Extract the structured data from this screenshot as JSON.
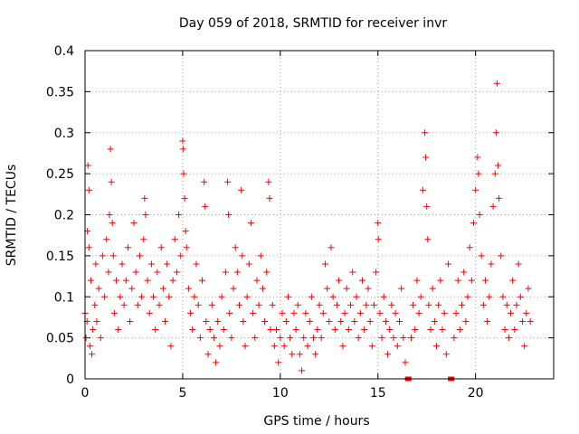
{
  "chart_data": {
    "type": "scatter",
    "title": "Day 059 of 2018, SRMTID for receiver invr",
    "xlabel": "GPS time / hours",
    "ylabel": "SRMTID / TECUs",
    "xlim": [
      0,
      24
    ],
    "ylim": [
      0,
      0.4
    ],
    "x_ticks": [
      "0",
      "5",
      "10",
      "15",
      "20"
    ],
    "x_tick_values": [
      0,
      5,
      10,
      15,
      20
    ],
    "y_ticks": [
      "0",
      "0.05",
      "0.1",
      "0.15",
      "0.2",
      "0.25",
      "0.3",
      "0.35",
      "0.4"
    ],
    "y_tick_values": [
      0,
      0.05,
      0.1,
      0.15,
      0.2,
      0.25,
      0.3,
      0.35,
      0.4
    ],
    "grid": true,
    "marker": "plus",
    "color": "#ff0000",
    "series": [
      {
        "points": [
          [
            0.0,
            0.08
          ],
          [
            0.05,
            0.05
          ],
          [
            0.1,
            0.07
          ],
          [
            0.12,
            0.18
          ],
          [
            0.15,
            0.26
          ],
          [
            0.2,
            0.23
          ],
          [
            0.2,
            0.16
          ],
          [
            0.25,
            0.04
          ],
          [
            0.3,
            0.12
          ],
          [
            0.35,
            0.03
          ],
          [
            0.4,
            0.06
          ],
          [
            0.5,
            0.09
          ],
          [
            0.55,
            0.14
          ],
          [
            0.6,
            0.07
          ],
          [
            0.7,
            0.11
          ],
          [
            0.8,
            0.05
          ],
          [
            0.9,
            0.15
          ],
          [
            1.0,
            0.1
          ],
          [
            1.1,
            0.17
          ],
          [
            1.2,
            0.13
          ],
          [
            1.25,
            0.2
          ],
          [
            1.3,
            0.28
          ],
          [
            1.35,
            0.24
          ],
          [
            1.4,
            0.19
          ],
          [
            1.45,
            0.15
          ],
          [
            1.5,
            0.08
          ],
          [
            1.6,
            0.12
          ],
          [
            1.7,
            0.06
          ],
          [
            1.8,
            0.1
          ],
          [
            1.9,
            0.14
          ],
          [
            2.0,
            0.09
          ],
          [
            2.1,
            0.12
          ],
          [
            2.2,
            0.16
          ],
          [
            2.3,
            0.07
          ],
          [
            2.4,
            0.11
          ],
          [
            2.5,
            0.19
          ],
          [
            2.6,
            0.13
          ],
          [
            2.7,
            0.09
          ],
          [
            2.8,
            0.15
          ],
          [
            2.9,
            0.1
          ],
          [
            3.0,
            0.17
          ],
          [
            3.05,
            0.22
          ],
          [
            3.1,
            0.2
          ],
          [
            3.2,
            0.12
          ],
          [
            3.3,
            0.08
          ],
          [
            3.4,
            0.14
          ],
          [
            3.5,
            0.1
          ],
          [
            3.6,
            0.06
          ],
          [
            3.7,
            0.13
          ],
          [
            3.8,
            0.09
          ],
          [
            3.9,
            0.16
          ],
          [
            4.0,
            0.11
          ],
          [
            4.1,
            0.07
          ],
          [
            4.2,
            0.14
          ],
          [
            4.3,
            0.1
          ],
          [
            4.4,
            0.04
          ],
          [
            4.5,
            0.12
          ],
          [
            4.6,
            0.17
          ],
          [
            4.7,
            0.13
          ],
          [
            4.8,
            0.2
          ],
          [
            4.9,
            0.15
          ],
          [
            5.0,
            0.29
          ],
          [
            5.02,
            0.28
          ],
          [
            5.05,
            0.25
          ],
          [
            5.1,
            0.22
          ],
          [
            5.15,
            0.18
          ],
          [
            5.2,
            0.16
          ],
          [
            5.3,
            0.11
          ],
          [
            5.4,
            0.08
          ],
          [
            5.5,
            0.06
          ],
          [
            5.6,
            0.1
          ],
          [
            5.7,
            0.14
          ],
          [
            5.8,
            0.09
          ],
          [
            5.9,
            0.05
          ],
          [
            6.0,
            0.12
          ],
          [
            6.1,
            0.24
          ],
          [
            6.15,
            0.21
          ],
          [
            6.2,
            0.07
          ],
          [
            6.3,
            0.03
          ],
          [
            6.4,
            0.06
          ],
          [
            6.5,
            0.09
          ],
          [
            6.6,
            0.05
          ],
          [
            6.7,
            0.02
          ],
          [
            6.8,
            0.07
          ],
          [
            6.9,
            0.04
          ],
          [
            7.0,
            0.1
          ],
          [
            7.1,
            0.06
          ],
          [
            7.2,
            0.13
          ],
          [
            7.3,
            0.24
          ],
          [
            7.35,
            0.2
          ],
          [
            7.4,
            0.08
          ],
          [
            7.5,
            0.05
          ],
          [
            7.6,
            0.11
          ],
          [
            7.7,
            0.16
          ],
          [
            7.8,
            0.13
          ],
          [
            7.9,
            0.09
          ],
          [
            8.0,
            0.23
          ],
          [
            8.05,
            0.15
          ],
          [
            8.1,
            0.07
          ],
          [
            8.2,
            0.04
          ],
          [
            8.3,
            0.1
          ],
          [
            8.4,
            0.14
          ],
          [
            8.5,
            0.19
          ],
          [
            8.6,
            0.08
          ],
          [
            8.7,
            0.05
          ],
          [
            8.8,
            0.12
          ],
          [
            8.9,
            0.09
          ],
          [
            9.0,
            0.15
          ],
          [
            9.1,
            0.11
          ],
          [
            9.2,
            0.07
          ],
          [
            9.3,
            0.13
          ],
          [
            9.4,
            0.24
          ],
          [
            9.45,
            0.22
          ],
          [
            9.5,
            0.06
          ],
          [
            9.6,
            0.09
          ],
          [
            9.7,
            0.04
          ],
          [
            9.8,
            0.06
          ],
          [
            9.9,
            0.02
          ],
          [
            10.0,
            0.05
          ],
          [
            10.1,
            0.08
          ],
          [
            10.2,
            0.04
          ],
          [
            10.3,
            0.07
          ],
          [
            10.4,
            0.1
          ],
          [
            10.5,
            0.05
          ],
          [
            10.6,
            0.03
          ],
          [
            10.7,
            0.08
          ],
          [
            10.8,
            0.06
          ],
          [
            10.9,
            0.09
          ],
          [
            11.0,
            0.03
          ],
          [
            11.1,
            0.01
          ],
          [
            11.2,
            0.05
          ],
          [
            11.3,
            0.08
          ],
          [
            11.4,
            0.04
          ],
          [
            11.5,
            0.07
          ],
          [
            11.6,
            0.1
          ],
          [
            11.7,
            0.05
          ],
          [
            11.8,
            0.03
          ],
          [
            11.9,
            0.06
          ],
          [
            12.0,
            0.09
          ],
          [
            12.1,
            0.05
          ],
          [
            12.2,
            0.08
          ],
          [
            12.3,
            0.14
          ],
          [
            12.4,
            0.11
          ],
          [
            12.5,
            0.07
          ],
          [
            12.6,
            0.16
          ],
          [
            12.7,
            0.1
          ],
          [
            12.8,
            0.06
          ],
          [
            12.9,
            0.09
          ],
          [
            13.0,
            0.12
          ],
          [
            13.1,
            0.07
          ],
          [
            13.2,
            0.04
          ],
          [
            13.3,
            0.08
          ],
          [
            13.4,
            0.11
          ],
          [
            13.5,
            0.06
          ],
          [
            13.6,
            0.09
          ],
          [
            13.7,
            0.13
          ],
          [
            13.8,
            0.07
          ],
          [
            13.9,
            0.1
          ],
          [
            14.0,
            0.05
          ],
          [
            14.1,
            0.08
          ],
          [
            14.2,
            0.12
          ],
          [
            14.3,
            0.06
          ],
          [
            14.4,
            0.09
          ],
          [
            14.5,
            0.11
          ],
          [
            14.6,
            0.07
          ],
          [
            14.7,
            0.04
          ],
          [
            14.8,
            0.09
          ],
          [
            14.9,
            0.13
          ],
          [
            15.0,
            0.19
          ],
          [
            15.02,
            0.17
          ],
          [
            15.1,
            0.08
          ],
          [
            15.2,
            0.05
          ],
          [
            15.3,
            0.1
          ],
          [
            15.4,
            0.07
          ],
          [
            15.5,
            0.03
          ],
          [
            15.6,
            0.06
          ],
          [
            15.7,
            0.09
          ],
          [
            15.8,
            0.05
          ],
          [
            15.9,
            0.08
          ],
          [
            16.0,
            0.04
          ],
          [
            16.1,
            0.07
          ],
          [
            16.2,
            0.11
          ],
          [
            16.3,
            0.05
          ],
          [
            16.4,
            0.02
          ],
          [
            16.5,
            0.0
          ],
          [
            16.6,
            0.0
          ],
          [
            16.7,
            0.05
          ],
          [
            16.8,
            0.09
          ],
          [
            16.9,
            0.06
          ],
          [
            17.0,
            0.12
          ],
          [
            17.1,
            0.08
          ],
          [
            17.2,
            0.1
          ],
          [
            17.3,
            0.23
          ],
          [
            17.4,
            0.3
          ],
          [
            17.45,
            0.27
          ],
          [
            17.5,
            0.21
          ],
          [
            17.55,
            0.17
          ],
          [
            17.6,
            0.09
          ],
          [
            17.7,
            0.06
          ],
          [
            17.8,
            0.11
          ],
          [
            17.9,
            0.07
          ],
          [
            18.0,
            0.04
          ],
          [
            18.1,
            0.09
          ],
          [
            18.2,
            0.12
          ],
          [
            18.3,
            0.06
          ],
          [
            18.4,
            0.08
          ],
          [
            18.5,
            0.03
          ],
          [
            18.6,
            0.14
          ],
          [
            18.7,
            0.0
          ],
          [
            18.8,
            0.0
          ],
          [
            18.9,
            0.05
          ],
          [
            19.0,
            0.08
          ],
          [
            19.1,
            0.12
          ],
          [
            19.2,
            0.06
          ],
          [
            19.3,
            0.09
          ],
          [
            19.4,
            0.13
          ],
          [
            19.5,
            0.07
          ],
          [
            19.6,
            0.1
          ],
          [
            19.7,
            0.16
          ],
          [
            19.8,
            0.12
          ],
          [
            19.9,
            0.19
          ],
          [
            20.0,
            0.23
          ],
          [
            20.1,
            0.27
          ],
          [
            20.15,
            0.25
          ],
          [
            20.2,
            0.2
          ],
          [
            20.3,
            0.15
          ],
          [
            20.4,
            0.09
          ],
          [
            20.5,
            0.12
          ],
          [
            20.6,
            0.07
          ],
          [
            20.7,
            0.1
          ],
          [
            20.8,
            0.14
          ],
          [
            20.9,
            0.21
          ],
          [
            21.0,
            0.25
          ],
          [
            21.05,
            0.3
          ],
          [
            21.1,
            0.36
          ],
          [
            21.15,
            0.26
          ],
          [
            21.2,
            0.22
          ],
          [
            21.3,
            0.15
          ],
          [
            21.4,
            0.1
          ],
          [
            21.5,
            0.06
          ],
          [
            21.6,
            0.09
          ],
          [
            21.7,
            0.05
          ],
          [
            21.8,
            0.08
          ],
          [
            21.9,
            0.12
          ],
          [
            22.0,
            0.06
          ],
          [
            22.1,
            0.09
          ],
          [
            22.2,
            0.14
          ],
          [
            22.3,
            0.1
          ],
          [
            22.4,
            0.07
          ],
          [
            22.5,
            0.04
          ],
          [
            22.6,
            0.08
          ],
          [
            22.7,
            0.11
          ],
          [
            22.8,
            0.07
          ]
        ]
      }
    ]
  }
}
